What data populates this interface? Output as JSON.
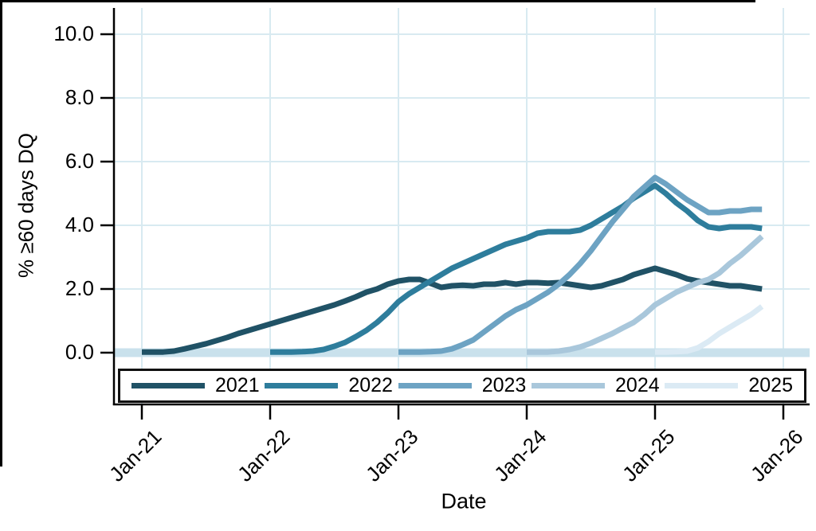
{
  "chart_data": {
    "type": "line",
    "title": "",
    "xlabel": "Date",
    "ylabel": "% ≥60 days DQ",
    "x_tick_labels": [
      "Jan-21",
      "Jan-22",
      "Jan-23",
      "Jan-24",
      "Jan-25",
      "Jan-26"
    ],
    "y_tick_labels": [
      "0.0",
      "2.0",
      "4.0",
      "6.0",
      "8.0",
      "10.0"
    ],
    "y_tick_values": [
      0,
      2,
      4,
      6,
      8,
      10
    ],
    "ylim": [
      0,
      10
    ],
    "x_axis_unit": "months, monthly data from Jan-21 through Nov-25",
    "grid": true,
    "legend_position": "bottom",
    "colors": {
      "gridline": "#d8eaf1",
      "axis": "#000000",
      "zero_band": "#c9e1ec",
      "background": "#ffffff"
    },
    "zero_reference_band": {
      "value": 0.0,
      "color": "#c9e1ec"
    },
    "series": [
      {
        "name": "2021",
        "color": "#205266",
        "start_label": "Jan-21",
        "start_month_offset_from_jan21": 0,
        "values": [
          0.02,
          0.02,
          0.02,
          0.05,
          0.12,
          0.2,
          0.28,
          0.38,
          0.48,
          0.6,
          0.7,
          0.8,
          0.9,
          1.0,
          1.1,
          1.2,
          1.3,
          1.4,
          1.5,
          1.62,
          1.75,
          1.9,
          2.0,
          2.15,
          2.25,
          2.3,
          2.3,
          2.18,
          2.05,
          2.1,
          2.12,
          2.1,
          2.15,
          2.15,
          2.2,
          2.15,
          2.2,
          2.2,
          2.18,
          2.2,
          2.15,
          2.1,
          2.05,
          2.1,
          2.2,
          2.3,
          2.45,
          2.55,
          2.65,
          2.55,
          2.45,
          2.32,
          2.25,
          2.2,
          2.15,
          2.1,
          2.1,
          2.05,
          2.0
        ]
      },
      {
        "name": "2022",
        "color": "#2e7d9c",
        "start_label": "Jan-22",
        "start_month_offset_from_jan21": 12,
        "values": [
          0.02,
          0.02,
          0.02,
          0.03,
          0.05,
          0.1,
          0.2,
          0.32,
          0.5,
          0.7,
          0.95,
          1.25,
          1.6,
          1.85,
          2.05,
          2.25,
          2.45,
          2.65,
          2.8,
          2.95,
          3.1,
          3.25,
          3.4,
          3.5,
          3.6,
          3.75,
          3.8,
          3.8,
          3.8,
          3.85,
          4.0,
          4.2,
          4.4,
          4.6,
          4.85,
          5.05,
          5.25,
          5.0,
          4.7,
          4.45,
          4.15,
          3.95,
          3.9,
          3.95,
          3.95,
          3.95,
          3.9
        ]
      },
      {
        "name": "2023",
        "color": "#6da3c3",
        "start_label": "Jan-23",
        "start_month_offset_from_jan21": 24,
        "values": [
          0.02,
          0.02,
          0.02,
          0.03,
          0.05,
          0.12,
          0.25,
          0.4,
          0.65,
          0.9,
          1.15,
          1.35,
          1.5,
          1.7,
          1.9,
          2.15,
          2.45,
          2.8,
          3.2,
          3.65,
          4.1,
          4.5,
          4.9,
          5.2,
          5.5,
          5.3,
          5.05,
          4.8,
          4.6,
          4.4,
          4.4,
          4.45,
          4.45,
          4.5,
          4.5
        ]
      },
      {
        "name": "2024",
        "color": "#a9c7db",
        "start_label": "Jan-24",
        "start_month_offset_from_jan21": 36,
        "values": [
          0.02,
          0.02,
          0.02,
          0.05,
          0.1,
          0.18,
          0.3,
          0.45,
          0.6,
          0.78,
          0.95,
          1.2,
          1.5,
          1.7,
          1.9,
          2.05,
          2.2,
          2.3,
          2.5,
          2.8,
          3.05,
          3.35,
          3.65
        ]
      },
      {
        "name": "2025",
        "color": "#dbeaf4",
        "start_label": "Jan-25",
        "start_month_offset_from_jan21": 48,
        "values": [
          0.02,
          0.02,
          0.03,
          0.05,
          0.15,
          0.35,
          0.6,
          0.8,
          1.0,
          1.2,
          1.45
        ]
      }
    ]
  }
}
